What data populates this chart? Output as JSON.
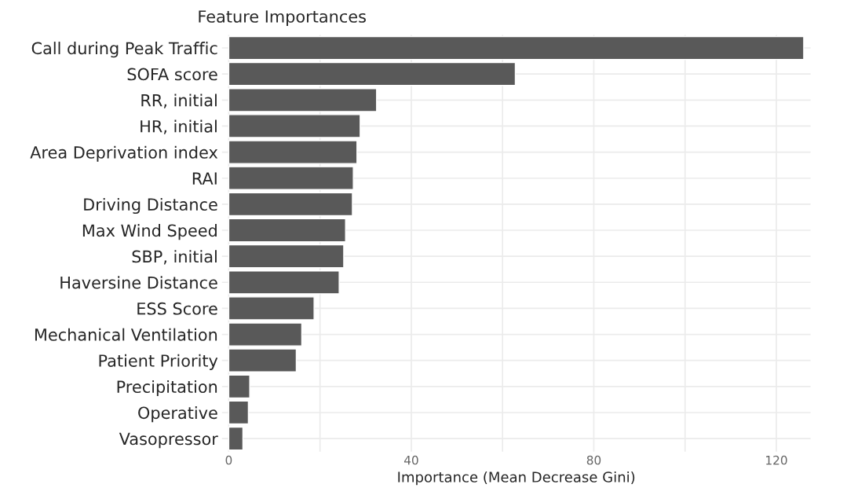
{
  "chart_data": {
    "type": "bar",
    "orientation": "horizontal",
    "title": "Feature Importances",
    "xlabel": "Importance (Mean Decrease Gini)",
    "categories": [
      "Call during Peak Traffic",
      "SOFA score",
      "RR, initial",
      "HR, initial",
      "Area Deprivation index",
      "RAI",
      "Driving Distance",
      "Max Wind Speed",
      "SBP, initial",
      "Haversine Distance",
      "ESS Score",
      "Mechanical Ventilation",
      "Patient Priority",
      "Precipitation",
      "Operative",
      "Vasopressor"
    ],
    "values": [
      126,
      62.8,
      32.4,
      28.8,
      28.1,
      27.3,
      27.1,
      25.6,
      25.2,
      24.2,
      18.7,
      16.0,
      14.8,
      4.6,
      4.3,
      3.1
    ],
    "color": "#595959",
    "xlim": [
      -1.5,
      127.5
    ],
    "xticks": [
      0,
      {
        "value": 20,
        "label": null
      },
      40,
      {
        "value": 60,
        "label": null
      },
      80,
      {
        "value": 100,
        "label": null
      },
      120
    ],
    "grid": true
  }
}
